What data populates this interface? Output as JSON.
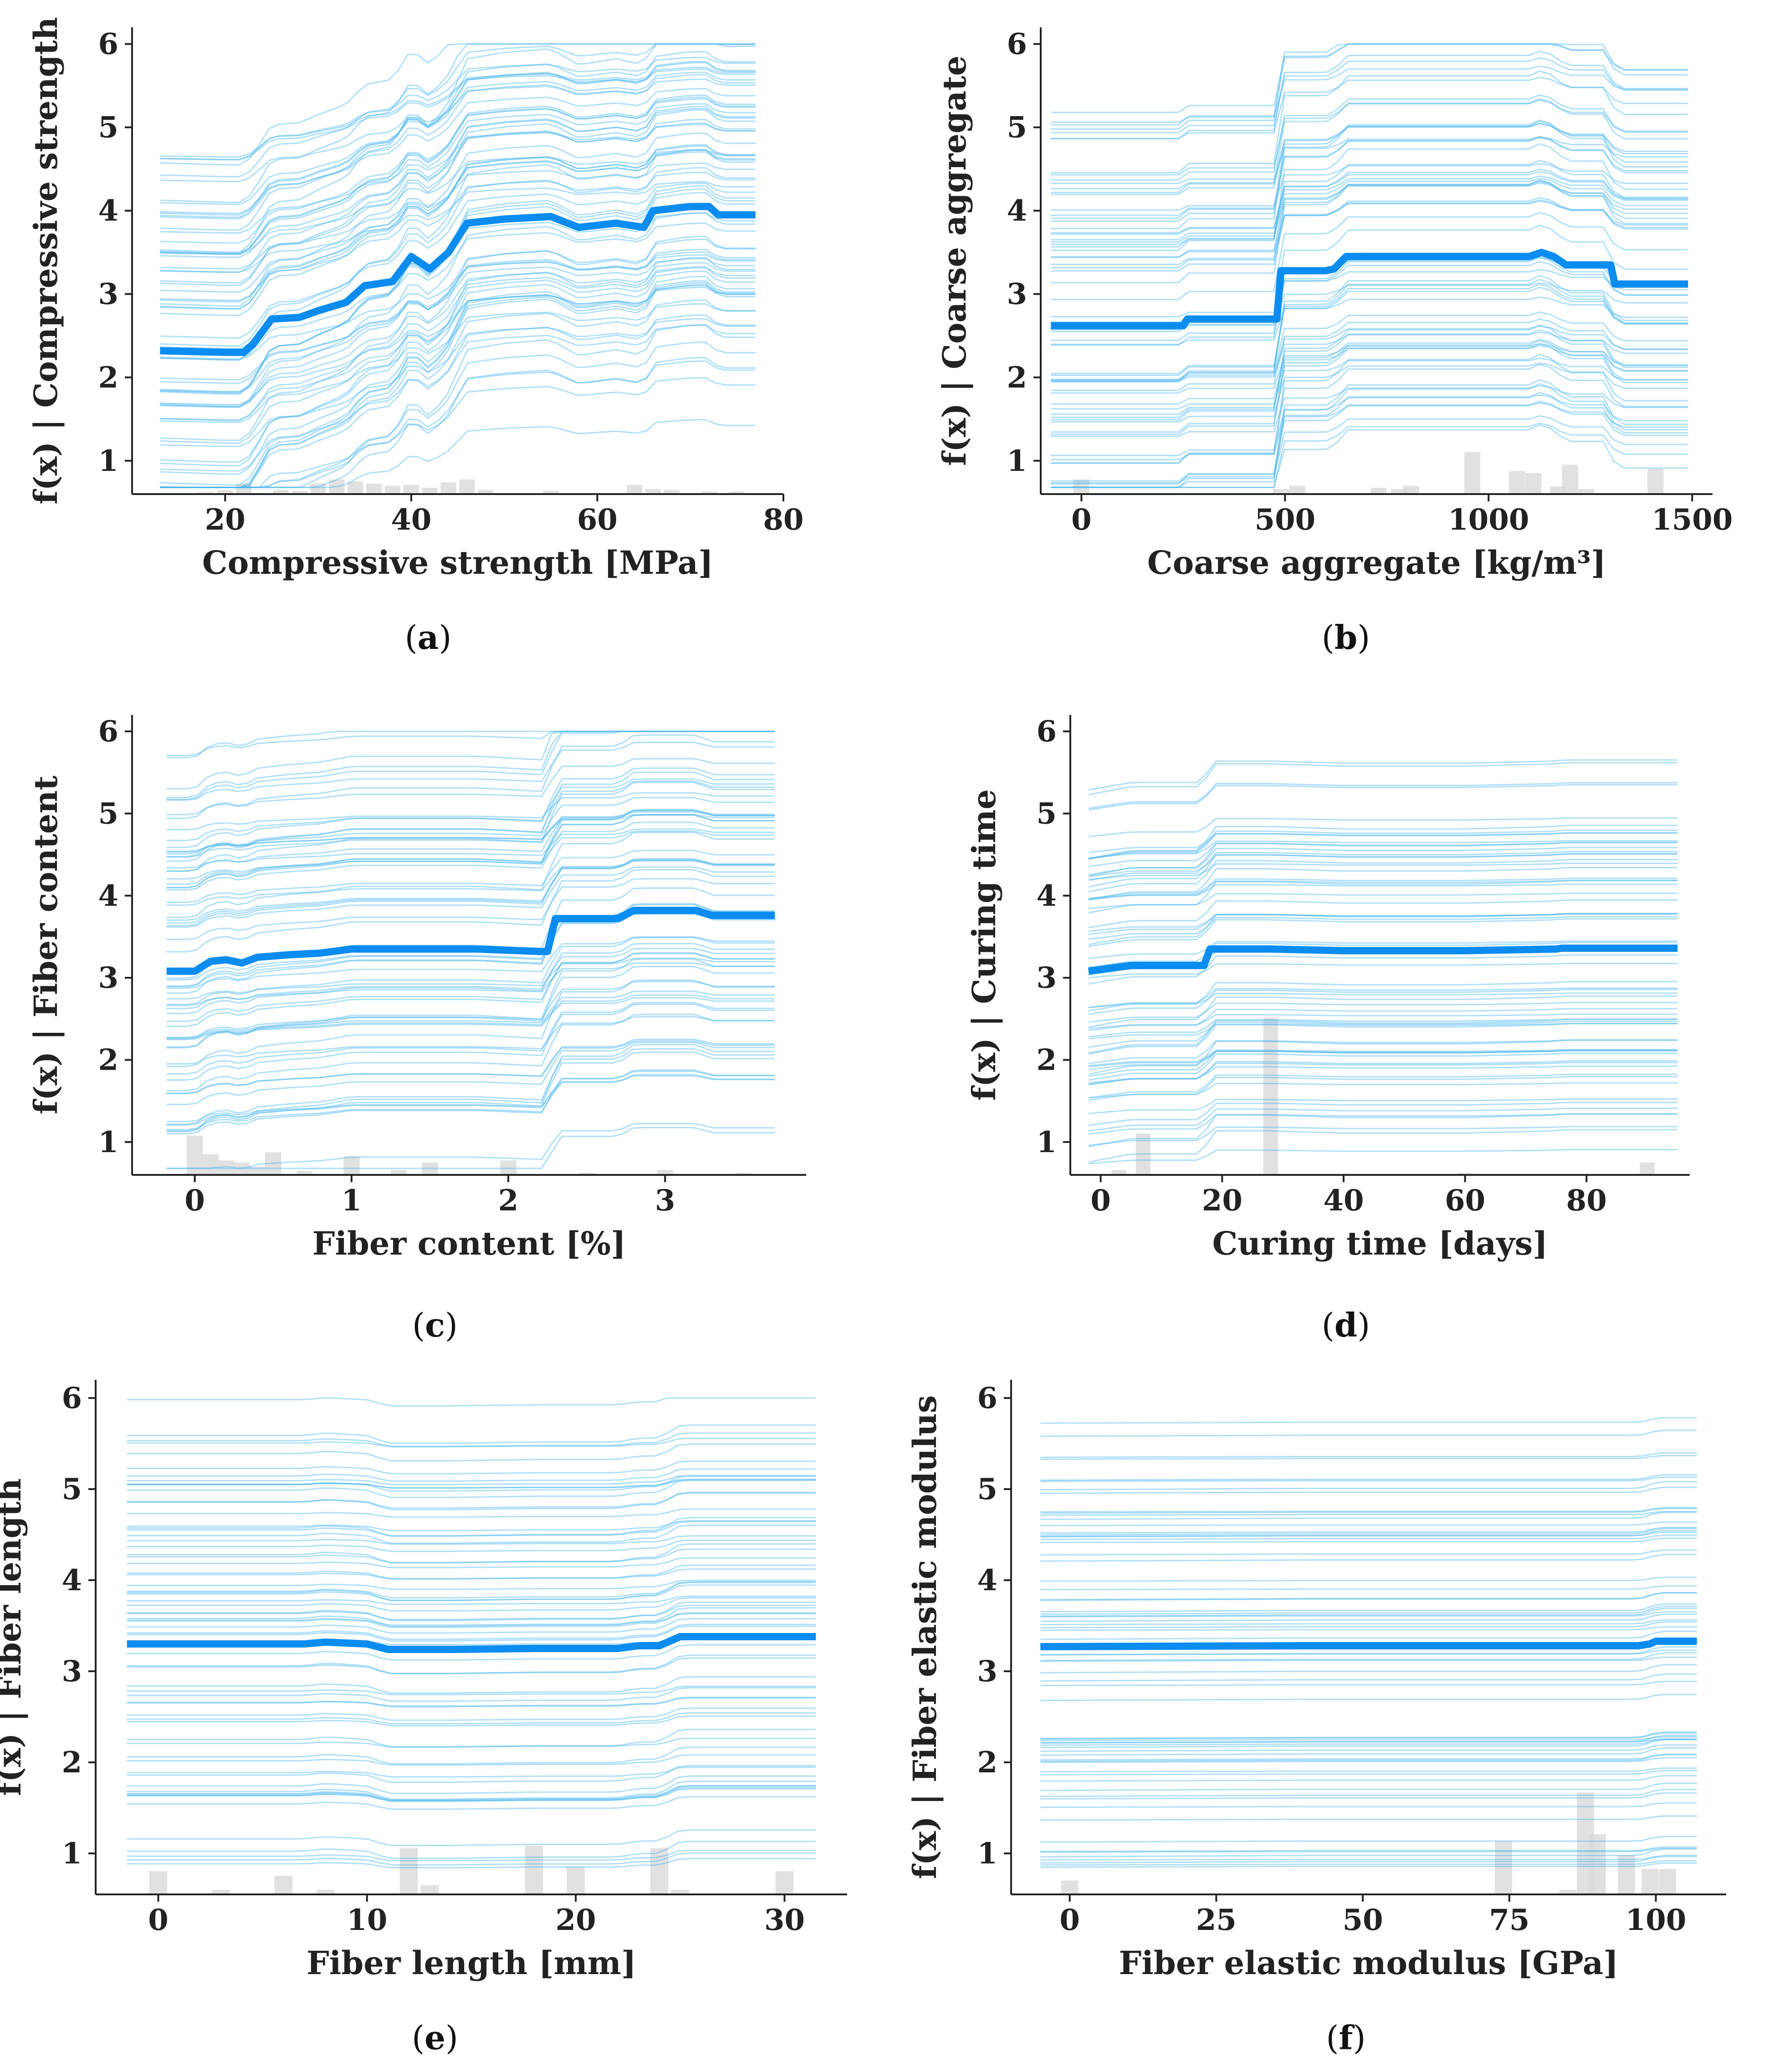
{
  "figure": {
    "panels": [
      {
        "id": "a",
        "caption": "a",
        "xlabel": "Compressive strength [MPa]",
        "ylabel": "f(x) | Compressive strength"
      },
      {
        "id": "b",
        "caption": "b",
        "xlabel": "Coarse aggregate [kg/m³]",
        "ylabel": "f(x) | Coarse aggregate"
      },
      {
        "id": "c",
        "caption": "c",
        "xlabel": "Fiber content [%]",
        "ylabel": "f(x) | Fiber content"
      },
      {
        "id": "d",
        "caption": "d",
        "xlabel": "Curing time [days]",
        "ylabel": "f(x) | Curing time"
      },
      {
        "id": "e",
        "caption": "e",
        "xlabel": "Fiber length [mm]",
        "ylabel": "f(x) | Fiber length"
      },
      {
        "id": "f",
        "caption": "f",
        "xlabel": "Fiber elastic modulus [GPa]",
        "ylabel": "f(x) | Fiber elastic modulus"
      }
    ]
  },
  "chart_data": [
    {
      "type": "line",
      "title": "(a)",
      "xlabel": "Compressive strength [MPa]",
      "ylabel": "f(x) | Compressive strength",
      "xlim": [
        10,
        80
      ],
      "ylim": [
        0.6,
        6.2
      ],
      "xticks": [
        20,
        40,
        60,
        80
      ],
      "yticks": [
        1,
        2,
        3,
        4,
        5,
        6
      ],
      "series": [
        {
          "name": "partial dependence",
          "x": [
            13,
            20,
            22,
            23,
            25,
            28,
            30,
            33,
            35,
            38,
            40,
            42,
            44,
            46,
            50,
            55,
            58,
            62,
            65,
            66,
            70,
            72,
            73,
            77
          ],
          "y": [
            2.32,
            2.3,
            2.3,
            2.4,
            2.7,
            2.72,
            2.8,
            2.9,
            3.1,
            3.15,
            3.45,
            3.3,
            3.5,
            3.85,
            3.9,
            3.93,
            3.8,
            3.85,
            3.8,
            4.0,
            4.05,
            4.05,
            3.95,
            3.95
          ]
        }
      ],
      "histogram": {
        "x": [
          18,
          20,
          22,
          26,
          28,
          30,
          32,
          34,
          36,
          38,
          40,
          42,
          44,
          46,
          48,
          55,
          64,
          66,
          68,
          72,
          75
        ],
        "h": [
          0.05,
          0.1,
          0.25,
          0.1,
          0.08,
          0.25,
          0.35,
          0.3,
          0.25,
          0.2,
          0.22,
          0.15,
          0.28,
          0.35,
          0.1,
          0.08,
          0.22,
          0.12,
          0.1,
          0.06,
          0.06
        ]
      }
    },
    {
      "type": "line",
      "title": "(b)",
      "xlabel": "Coarse aggregate [kg/m³]",
      "ylabel": "f(x) | Coarse aggregate",
      "xlim": [
        -100,
        1550
      ],
      "ylim": [
        0.6,
        6.2
      ],
      "xticks": [
        0,
        500,
        1000,
        1500
      ],
      "yticks": [
        1,
        2,
        3,
        4,
        5,
        6
      ],
      "series": [
        {
          "name": "partial dependence",
          "x": [
            -75,
            250,
            260,
            480,
            490,
            600,
            620,
            650,
            1000,
            1100,
            1130,
            1160,
            1190,
            1250,
            1300,
            1310,
            1490
          ],
          "y": [
            2.62,
            2.62,
            2.7,
            2.7,
            3.28,
            3.28,
            3.3,
            3.45,
            3.45,
            3.45,
            3.5,
            3.45,
            3.35,
            3.35,
            3.35,
            3.12,
            3.12
          ]
        }
      ],
      "histogram": {
        "x": [
          0,
          490,
          530,
          730,
          780,
          810,
          960,
          1070,
          1110,
          1170,
          1200,
          1240,
          1410
        ],
        "h": [
          0.35,
          0.12,
          0.2,
          0.15,
          0.12,
          0.2,
          1.0,
          0.55,
          0.5,
          0.18,
          0.7,
          0.12,
          0.6
        ]
      }
    },
    {
      "type": "line",
      "title": "(c)",
      "xlabel": "Fiber content [%]",
      "ylabel": "f(x) | Fiber content",
      "xlim": [
        -0.4,
        3.9
      ],
      "ylim": [
        0.6,
        6.2
      ],
      "xticks": [
        0,
        1,
        2,
        3
      ],
      "yticks": [
        1,
        2,
        3,
        4,
        5,
        6
      ],
      "series": [
        {
          "name": "partial dependence",
          "x": [
            -0.18,
            0,
            0.1,
            0.2,
            0.3,
            0.4,
            0.6,
            0.8,
            1.0,
            1.4,
            1.8,
            2.2,
            2.25,
            2.3,
            2.7,
            2.8,
            3.2,
            3.3,
            3.7
          ],
          "y": [
            3.08,
            3.08,
            3.2,
            3.22,
            3.18,
            3.25,
            3.28,
            3.3,
            3.35,
            3.35,
            3.35,
            3.32,
            3.32,
            3.72,
            3.72,
            3.82,
            3.82,
            3.76,
            3.76
          ]
        }
      ],
      "histogram": {
        "x": [
          0,
          0.1,
          0.2,
          0.3,
          0.4,
          0.5,
          0.7,
          1.0,
          1.3,
          1.5,
          2.0,
          2.5,
          3.0,
          3.5
        ],
        "h": [
          0.95,
          0.5,
          0.35,
          0.3,
          0.2,
          0.55,
          0.1,
          0.45,
          0.12,
          0.3,
          0.35,
          0.05,
          0.12,
          0.05
        ]
      }
    },
    {
      "type": "line",
      "title": "(d)",
      "xlabel": "Curing time [days]",
      "ylabel": "f(x) | Curing time",
      "xlim": [
        -5,
        97
      ],
      "ylim": [
        0.6,
        6.2
      ],
      "xticks": [
        0,
        20,
        40,
        60,
        80
      ],
      "yticks": [
        1,
        2,
        3,
        4,
        5,
        6
      ],
      "series": [
        {
          "name": "partial dependence",
          "x": [
            -2,
            5,
            17,
            18,
            28,
            40,
            60,
            75,
            76,
            95
          ],
          "y": [
            3.08,
            3.15,
            3.15,
            3.35,
            3.35,
            3.33,
            3.33,
            3.35,
            3.36,
            3.36
          ]
        }
      ],
      "histogram": {
        "x": [
          3,
          7,
          28,
          60,
          90
        ],
        "h": [
          0.12,
          1.0,
          3.8,
          0.05,
          0.3
        ]
      }
    },
    {
      "type": "line",
      "title": "(e)",
      "xlabel": "Fiber length [mm]",
      "ylabel": "f(x) | Fiber length",
      "xlim": [
        -3,
        33
      ],
      "ylim": [
        0.55,
        6.2
      ],
      "xticks": [
        0,
        10,
        20,
        30
      ],
      "yticks": [
        1,
        2,
        3,
        4,
        5,
        6
      ],
      "series": [
        {
          "name": "partial dependence",
          "x": [
            -1.5,
            7,
            8,
            10,
            11,
            14,
            18,
            22,
            23,
            24,
            25,
            31.5
          ],
          "y": [
            3.3,
            3.3,
            3.32,
            3.3,
            3.24,
            3.24,
            3.25,
            3.25,
            3.28,
            3.28,
            3.38,
            3.38
          ]
        }
      ],
      "histogram": {
        "x": [
          0,
          3,
          6,
          8,
          12,
          13,
          18,
          20,
          24,
          25,
          30
        ],
        "h": [
          0.5,
          0.1,
          0.4,
          0.1,
          1.0,
          0.2,
          1.05,
          0.6,
          1.0,
          0.1,
          0.5
        ]
      }
    },
    {
      "type": "line",
      "title": "(f)",
      "xlabel": "Fiber elastic modulus [GPa]",
      "ylabel": "f(x) | Fiber elastic modulus",
      "xlim": [
        -10,
        112
      ],
      "ylim": [
        0.55,
        6.2
      ],
      "xticks": [
        0,
        25,
        50,
        75,
        100
      ],
      "yticks": [
        1,
        2,
        3,
        4,
        5,
        6
      ],
      "series": [
        {
          "name": "partial dependence",
          "x": [
            -5,
            40,
            80,
            97,
            99,
            100,
            107
          ],
          "y": [
            3.27,
            3.28,
            3.28,
            3.28,
            3.3,
            3.33,
            3.33
          ]
        }
      ],
      "histogram": {
        "x": [
          0,
          74,
          85,
          88,
          90,
          95,
          99,
          102
        ],
        "h": [
          0.3,
          1.15,
          0.1,
          2.2,
          1.3,
          0.85,
          0.55,
          0.55
        ]
      }
    }
  ]
}
